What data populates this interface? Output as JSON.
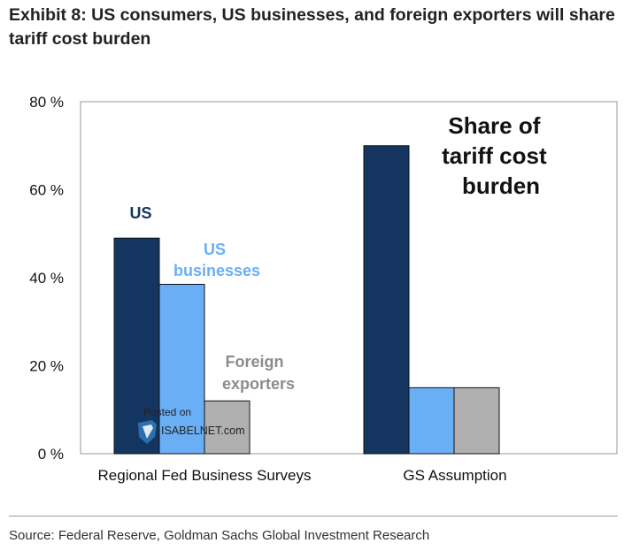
{
  "chart_data": {
    "type": "bar",
    "title": "Exhibit 8: US consumers, US businesses, and foreign exporters will share tariff cost burden",
    "categories": [
      "Regional Fed Business Surveys",
      "GS Assumption"
    ],
    "series": [
      {
        "name": "US",
        "values": [
          49,
          70
        ],
        "color": "#13355f"
      },
      {
        "name": "US businesses",
        "values": [
          38.5,
          15
        ],
        "color": "#6aaff5"
      },
      {
        "name": "Foreign exporters",
        "values": [
          12,
          15
        ],
        "color": "#b0b0b0"
      }
    ],
    "ylim": [
      0,
      80
    ],
    "yticks": [
      0,
      20,
      40,
      60,
      80
    ],
    "ytick_suffix": " %",
    "grid": false,
    "annotations": {
      "us_label": "US",
      "us_businesses_label": [
        "US",
        "businesses"
      ],
      "foreign_exporters_label": [
        "Foreign",
        "exporters"
      ],
      "share_label": [
        "Share of",
        "tariff cost",
        "burden"
      ]
    },
    "watermark": {
      "line1": "Posted on",
      "line2": "ISABELNET.com"
    }
  },
  "source": "Source: Federal Reserve, Goldman Sachs Global Investment Research"
}
